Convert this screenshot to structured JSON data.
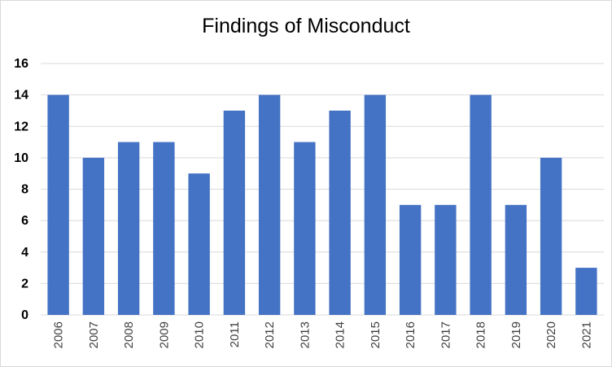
{
  "chart_data": {
    "type": "bar",
    "title": "Findings of Misconduct",
    "categories": [
      "2006",
      "2007",
      "2008",
      "2009",
      "2010",
      "2011",
      "2012",
      "2013",
      "2014",
      "2015",
      "2016",
      "2017",
      "2018",
      "2019",
      "2020",
      "2021"
    ],
    "values": [
      14,
      10,
      11,
      11,
      9,
      13,
      14,
      11,
      13,
      14,
      7,
      7,
      14,
      7,
      10,
      3
    ],
    "ylim": [
      0,
      16
    ],
    "yticks": [
      0,
      2,
      4,
      6,
      8,
      10,
      12,
      14,
      16
    ],
    "grid": true,
    "bar_color": "#4472c4",
    "legend": "none"
  }
}
